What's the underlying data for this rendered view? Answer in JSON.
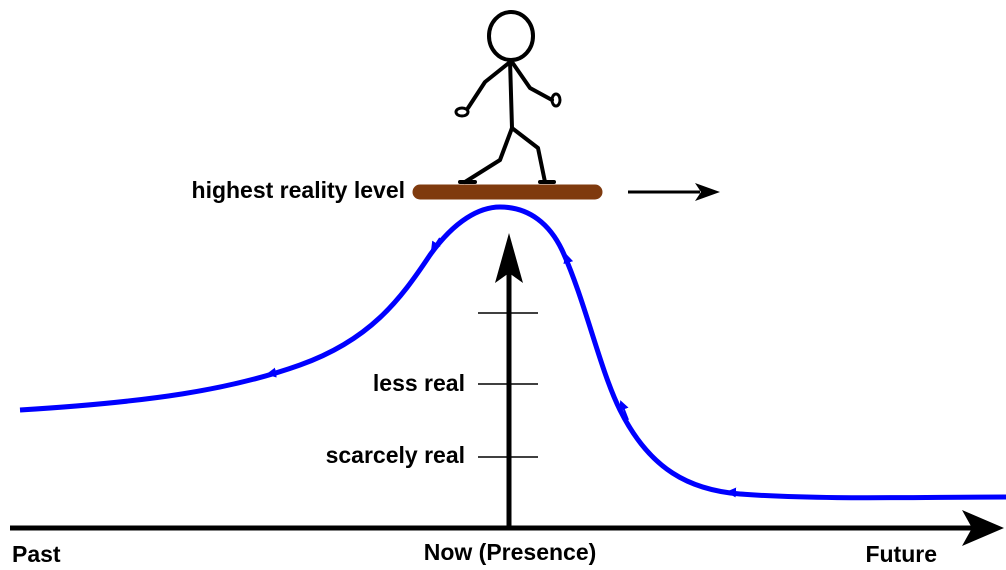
{
  "labels": {
    "top_level": "highest reality level",
    "middle_level": "less real",
    "low_level": "scarcely real"
  },
  "axis": {
    "left": "Past",
    "center": "Now (Presence)",
    "right": "Future"
  }
}
